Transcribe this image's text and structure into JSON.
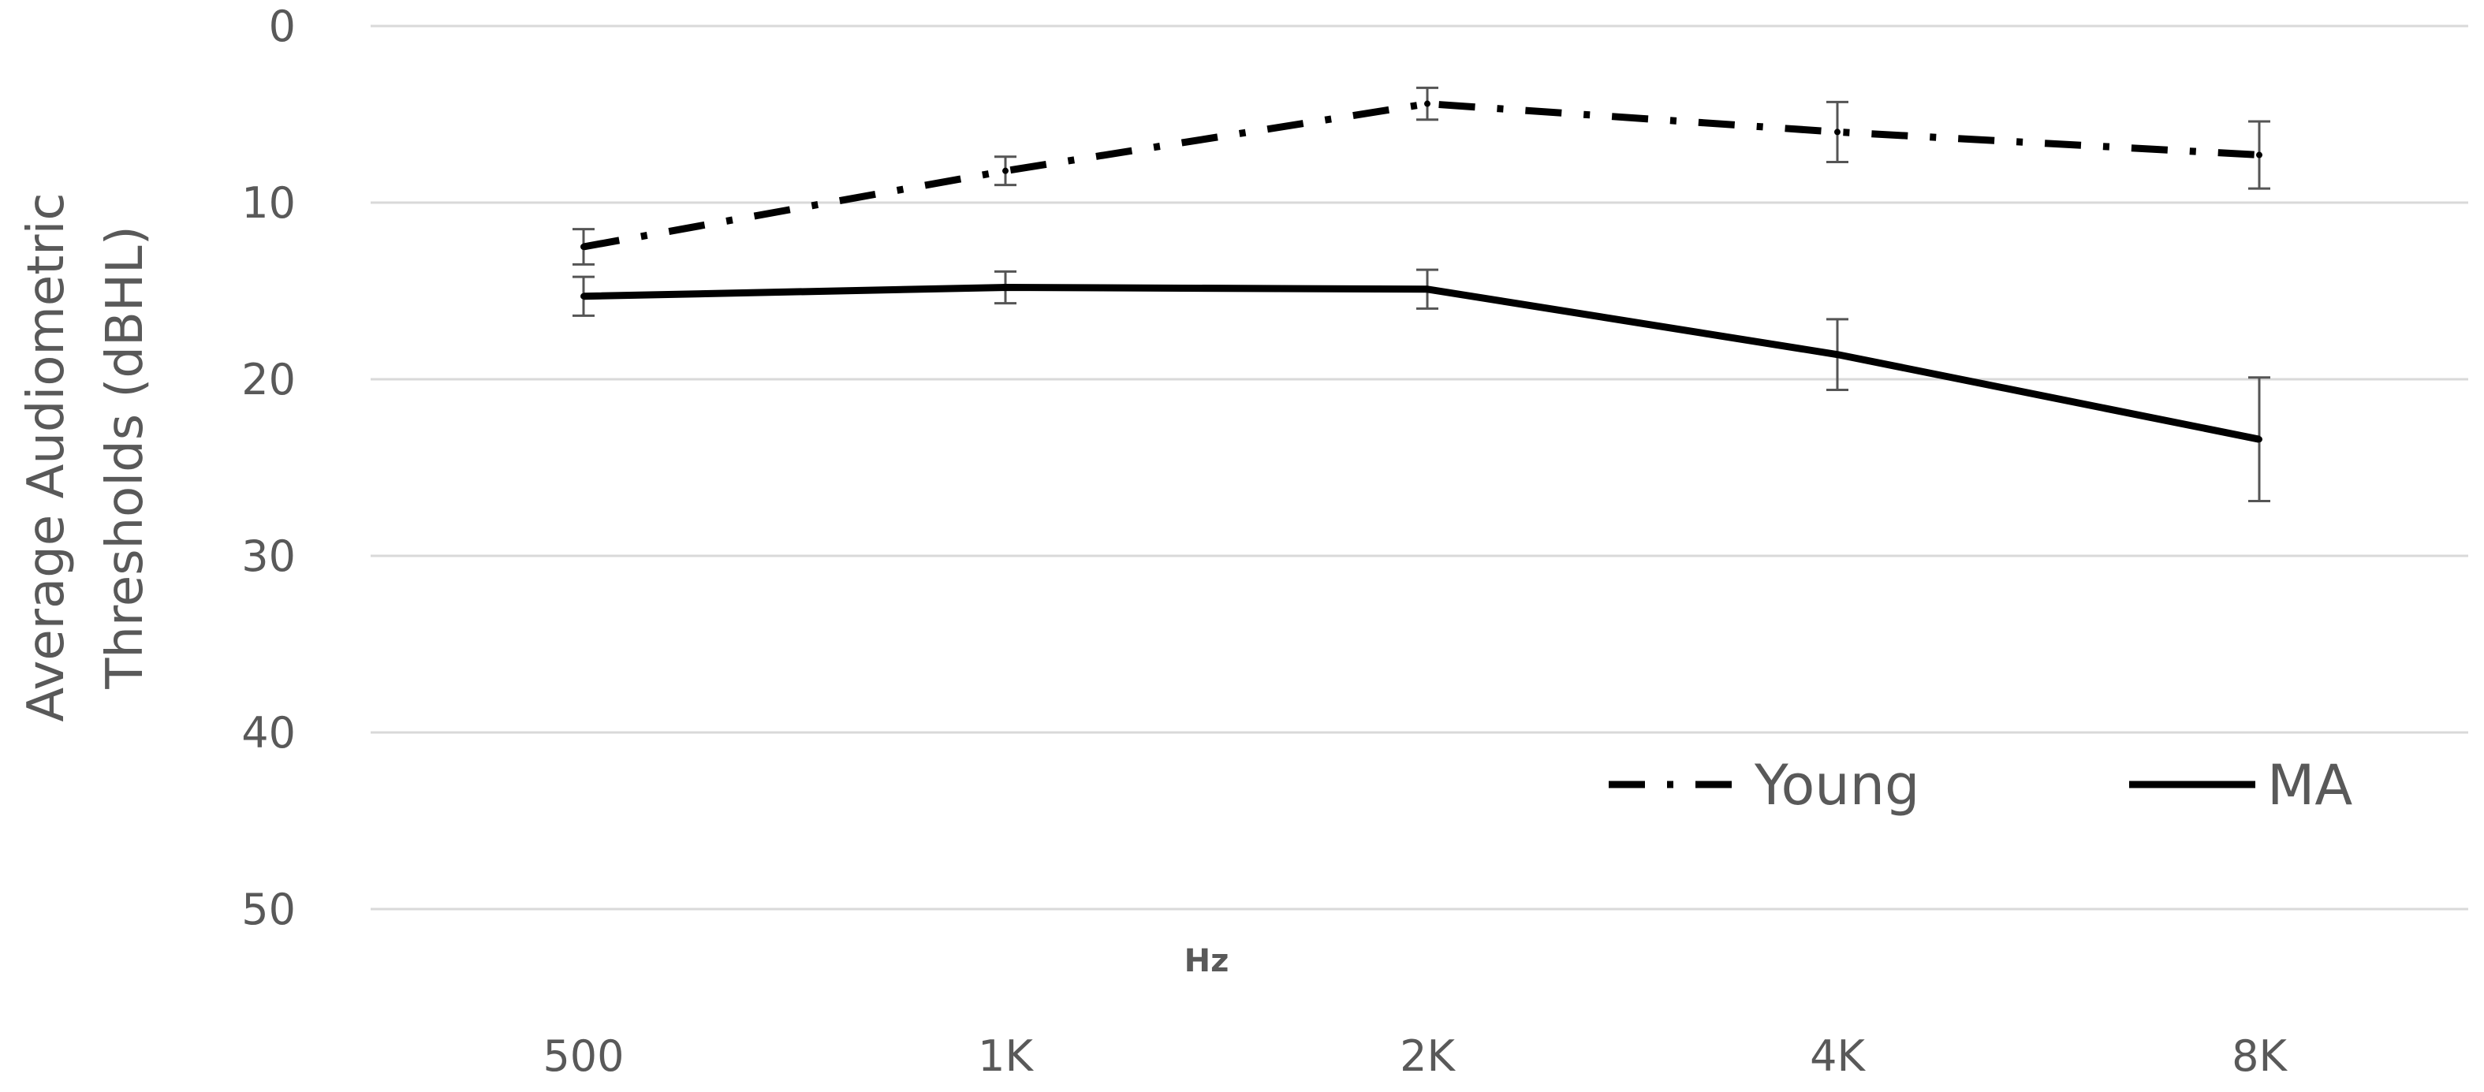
{
  "chart_data": {
    "type": "line",
    "xlabel": "Hz",
    "ylabel_lines": [
      "Average Audiometric",
      "Thresholds (dBHL)"
    ],
    "categories": [
      "500",
      "1K",
      "2K",
      "4K",
      "8K"
    ],
    "y_ticks": [
      "0",
      "10",
      "20",
      "30",
      "40",
      "50"
    ],
    "ylim": [
      0,
      50
    ],
    "y_inverted": true,
    "grid": true,
    "legend_position": "bottom-right",
    "series": [
      {
        "name": "Young",
        "style": "dash-dot",
        "color": "#000000",
        "values": [
          12.5,
          8.2,
          4.4,
          6.0,
          7.3
        ],
        "error": [
          1.0,
          0.8,
          0.9,
          1.7,
          1.9
        ]
      },
      {
        "name": "MA",
        "style": "solid",
        "color": "#000000",
        "values": [
          15.3,
          14.8,
          14.9,
          18.6,
          23.4
        ],
        "error": [
          1.1,
          0.9,
          1.1,
          2.0,
          3.5
        ]
      }
    ]
  }
}
